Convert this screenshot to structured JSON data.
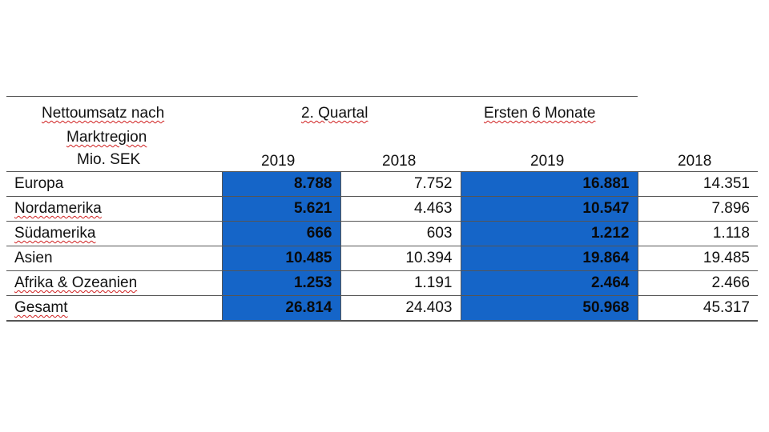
{
  "header": {
    "label_line1": "Nettoumsatz nach",
    "label_line2": "Marktregion",
    "label_line3": "Mio. SEK",
    "group_q2": "2. Quartal",
    "group_h1": "Ersten 6 Monate",
    "years": [
      "2019",
      "2018",
      "2019",
      "2018"
    ]
  },
  "colors": {
    "highlight": "#1565c8",
    "rules": "#555555"
  },
  "rows": [
    {
      "region": "Europa",
      "q2_2019": "8.788",
      "q2_2018": "7.752",
      "h1_2019": "16.881",
      "h1_2018": "14.351"
    },
    {
      "region": "Nordamerika",
      "q2_2019": "5.621",
      "q2_2018": "4.463",
      "h1_2019": "10.547",
      "h1_2018": "7.896"
    },
    {
      "region": "Südamerika",
      "q2_2019": "666",
      "q2_2018": "603",
      "h1_2019": "1.212",
      "h1_2018": "1.118"
    },
    {
      "region": "Asien",
      "q2_2019": "10.485",
      "q2_2018": "10.394",
      "h1_2019": "19.864",
      "h1_2018": "19.485"
    },
    {
      "region": "Afrika & Ozeanien",
      "q2_2019": "1.253",
      "q2_2018": "1.191",
      "h1_2019": "2.464",
      "h1_2018": "2.466"
    },
    {
      "region": "Gesamt",
      "q2_2019": "26.814",
      "q2_2018": "24.403",
      "h1_2019": "50.968",
      "h1_2018": "45.317"
    }
  ]
}
